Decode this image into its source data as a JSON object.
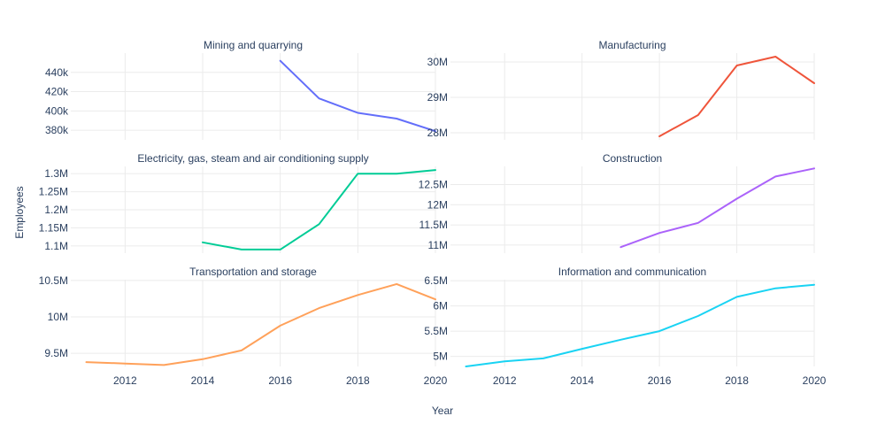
{
  "chart_data": {
    "type": "line",
    "xlabel": "Year",
    "ylabel": "Employees",
    "grid": true,
    "x_ticks": [
      2012,
      2014,
      2016,
      2018,
      2020
    ],
    "panels": [
      {
        "title": "Mining and quarrying",
        "color": "#636efa",
        "ylim": [
          370000,
          460000
        ],
        "y_ticks": [
          380000,
          400000,
          420000,
          440000
        ],
        "y_tick_labels": [
          "380k",
          "400k",
          "420k",
          "440k"
        ],
        "x": [
          2016,
          2017,
          2018,
          2019,
          2020
        ],
        "y": [
          452000,
          413000,
          398000,
          392000,
          379000
        ]
      },
      {
        "title": "Manufacturing",
        "color": "#EF553B",
        "ylim": [
          27800000,
          30250000
        ],
        "y_ticks": [
          28000000,
          29000000,
          30000000
        ],
        "y_tick_labels": [
          "28M",
          "29M",
          "30M"
        ],
        "x": [
          2016,
          2017,
          2018,
          2019,
          2020
        ],
        "y": [
          27900000,
          28500000,
          29900000,
          30150000,
          29400000
        ]
      },
      {
        "title": "Electricity, gas, steam and air conditioning supply",
        "color": "#00cc96",
        "ylim": [
          1080000,
          1320000
        ],
        "y_ticks": [
          1100000,
          1150000,
          1200000,
          1250000,
          1300000
        ],
        "y_tick_labels": [
          "1.1M",
          "1.15M",
          "1.2M",
          "1.25M",
          "1.3M"
        ],
        "x": [
          2014,
          2015,
          2016,
          2017,
          2018,
          2019,
          2020
        ],
        "y": [
          1110000,
          1090000,
          1090000,
          1160000,
          1300000,
          1300000,
          1310000
        ]
      },
      {
        "title": "Construction",
        "color": "#ab63fa",
        "ylim": [
          10800000,
          12950000
        ],
        "y_ticks": [
          11000000,
          11500000,
          12000000,
          12500000
        ],
        "y_tick_labels": [
          "11M",
          "11.5M",
          "12M",
          "12.5M"
        ],
        "x": [
          2015,
          2016,
          2017,
          2018,
          2019,
          2020
        ],
        "y": [
          10950000,
          11300000,
          11550000,
          12150000,
          12700000,
          12900000
        ]
      },
      {
        "title": "Transportation and storage",
        "color": "#FFA15A",
        "ylim": [
          9320000,
          10510000
        ],
        "y_ticks": [
          9500000,
          10000000,
          10500000
        ],
        "y_tick_labels": [
          "9.5M",
          "10M",
          "10.5M"
        ],
        "x": [
          2011,
          2012,
          2013,
          2014,
          2015,
          2016,
          2017,
          2018,
          2019,
          2020
        ],
        "y": [
          9380000,
          9360000,
          9340000,
          9420000,
          9540000,
          9880000,
          10120000,
          10300000,
          10450000,
          10240000
        ]
      },
      {
        "title": "Information and communication",
        "color": "#19d3f3",
        "ylim": [
          4800000,
          6520000
        ],
        "y_ticks": [
          5000000,
          5500000,
          6000000,
          6500000
        ],
        "y_tick_labels": [
          "5M",
          "5.5M",
          "6M",
          "6.5M"
        ],
        "x": [
          2011,
          2012,
          2013,
          2014,
          2015,
          2016,
          2017,
          2018,
          2019,
          2020
        ],
        "y": [
          4800000,
          4900000,
          4960000,
          5150000,
          5330000,
          5500000,
          5800000,
          6180000,
          6350000,
          6420000
        ]
      }
    ]
  }
}
